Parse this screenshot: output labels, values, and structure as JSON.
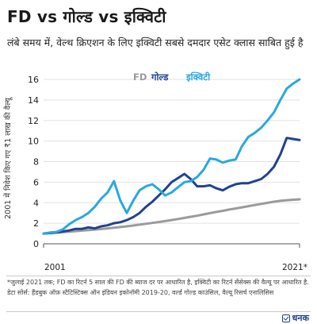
{
  "header": {
    "title": "FD vs गोल्ड vs इक्विटी",
    "subtitle": "लंबे समय में, वेल्थ क्रिएशन के लिए इक्विटी सबसे दमदार एसेट क्लास साबित हुई है"
  },
  "footer": {
    "note": "*जुलाई 2021 तक; FD का रिटर्न 5 साल की FD की ब्याज दर पर आधारित है, इक्विटी का रिटर्न सेंसेक्स की वैल्यू पर आधारित है. डेटा सोर्स: हैंडबुक ऑफ़ स्टैटिस्टिक्स ऑन इंडियन इकोनॉमी 2019-20, वर्ल्ड गोल्ड काउंसिल, वैल्यू रिसर्च एनालिसिस",
    "brand": "धनक"
  },
  "chart_data": {
    "type": "line",
    "ylabel": "2001 में निवेश किए गए ₹1 लाख की वैल्यू",
    "xtick_labels": [
      "2001",
      "2021*"
    ],
    "ylim": [
      0,
      16
    ],
    "yticks": [
      0,
      2,
      4,
      6,
      8,
      10,
      12,
      14,
      16
    ],
    "grid": true,
    "legend_position": "top-center",
    "x": [
      2001,
      2001.5,
      2002,
      2002.5,
      2003,
      2003.5,
      2004,
      2004.5,
      2005,
      2005.5,
      2006,
      2006.5,
      2007,
      2007.5,
      2008,
      2008.5,
      2009,
      2009.5,
      2010,
      2010.5,
      2011,
      2011.5,
      2012,
      2012.5,
      2013,
      2013.5,
      2014,
      2014.5,
      2015,
      2015.5,
      2016,
      2016.5,
      2017,
      2017.5,
      2018,
      2018.5,
      2019,
      2019.5,
      2020,
      2020.5,
      2021
    ],
    "series": [
      {
        "name": "FD",
        "color": "#9b9b9b",
        "values": [
          1.0,
          1.04,
          1.08,
          1.13,
          1.18,
          1.23,
          1.28,
          1.33,
          1.38,
          1.44,
          1.5,
          1.56,
          1.63,
          1.7,
          1.78,
          1.86,
          1.95,
          2.03,
          2.12,
          2.21,
          2.31,
          2.41,
          2.52,
          2.63,
          2.74,
          2.86,
          2.98,
          3.1,
          3.21,
          3.33,
          3.44,
          3.55,
          3.66,
          3.77,
          3.88,
          3.99,
          4.1,
          4.18,
          4.24,
          4.29,
          4.33
        ]
      },
      {
        "name": "गोल्ड",
        "color": "#21428f",
        "values": [
          1.0,
          1.05,
          1.1,
          1.2,
          1.3,
          1.45,
          1.45,
          1.6,
          1.5,
          1.7,
          1.8,
          2.0,
          2.1,
          2.3,
          2.6,
          3.0,
          3.6,
          4.1,
          4.7,
          5.3,
          6.0,
          6.4,
          6.8,
          6.3,
          5.6,
          5.6,
          5.7,
          5.4,
          5.2,
          5.55,
          5.8,
          5.9,
          5.9,
          6.1,
          6.3,
          6.8,
          7.5,
          8.7,
          10.3,
          10.2,
          10.1
        ]
      },
      {
        "name": "इक्विटी",
        "color": "#2aa8e0",
        "values": [
          1.0,
          1.1,
          1.15,
          1.4,
          1.9,
          2.3,
          2.6,
          3.0,
          3.6,
          4.4,
          5.0,
          6.1,
          4.2,
          3.0,
          4.2,
          5.2,
          5.6,
          5.8,
          5.3,
          4.7,
          5.0,
          5.5,
          6.0,
          6.1,
          6.5,
          7.2,
          8.3,
          8.2,
          7.9,
          8.1,
          8.2,
          9.5,
          10.4,
          10.8,
          11.3,
          12.0,
          12.8,
          14.0,
          15.1,
          15.6,
          16.0
        ]
      }
    ]
  }
}
